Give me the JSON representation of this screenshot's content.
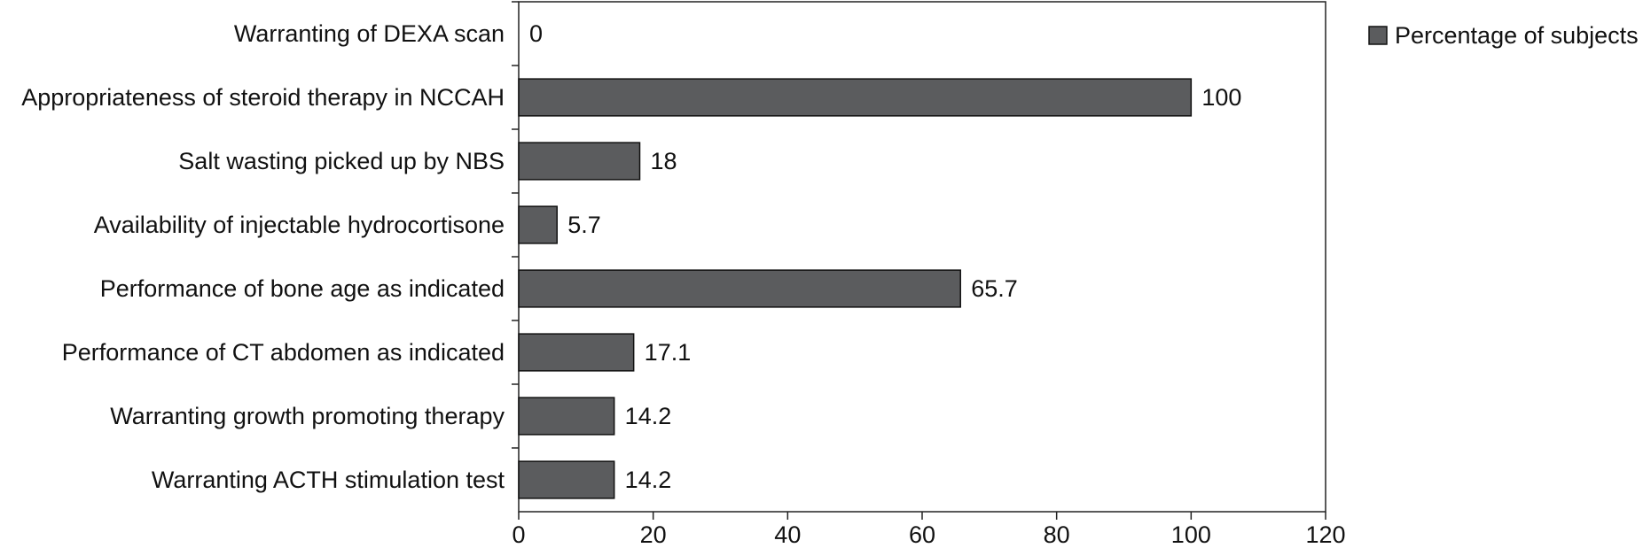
{
  "chart_data": {
    "type": "hbar",
    "categories": [
      "Warranting of DEXA scan",
      "Appropriateness of steroid therapy in NCCAH",
      "Salt wasting picked up by NBS",
      "Availability of injectable hydrocortisone",
      "Performance of bone age as indicated",
      "Performance of CT abdomen as indicated",
      "Warranting growth promoting therapy",
      "Warranting ACTH stimulation test"
    ],
    "series": [
      {
        "name": "Percentage of subjects",
        "color": "#5b5c5e",
        "values": [
          0,
          100,
          18,
          5.7,
          65.7,
          17.1,
          14.2,
          14.2
        ]
      }
    ],
    "xlim": [
      0,
      120
    ],
    "xticks": [
      0,
      20,
      40,
      60,
      80,
      100,
      120
    ],
    "grid": false,
    "legend": "right"
  }
}
